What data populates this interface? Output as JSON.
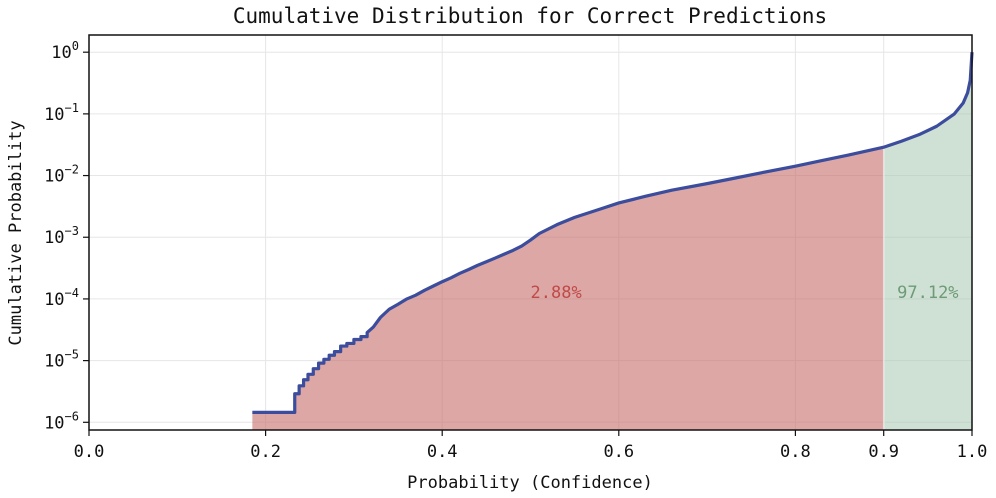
{
  "chart_data": {
    "type": "area",
    "title": "Cumulative Distribution for Correct Predictions",
    "xlabel": "Probability (Confidence)",
    "ylabel": "Cumulative Probability",
    "xlim": [
      0.0,
      1.0
    ],
    "ylim": [
      7.5e-07,
      1.9
    ],
    "y_scale": "log",
    "grid": true,
    "x_ticks": [
      {
        "value": 0.0,
        "label": "0.0"
      },
      {
        "value": 0.2,
        "label": "0.2"
      },
      {
        "value": 0.4,
        "label": "0.4"
      },
      {
        "value": 0.6,
        "label": "0.6"
      },
      {
        "value": 0.8,
        "label": "0.8"
      },
      {
        "value": 0.9,
        "label": "0.9"
      },
      {
        "value": 1.0,
        "label": "1.0"
      }
    ],
    "y_ticks": [
      {
        "value": 1.0,
        "base": "10",
        "exp": "0"
      },
      {
        "value": 0.1,
        "base": "10",
        "exp": "−1"
      },
      {
        "value": 0.01,
        "base": "10",
        "exp": "−2"
      },
      {
        "value": 0.001,
        "base": "10",
        "exp": "−3"
      },
      {
        "value": 0.0001,
        "base": "10",
        "exp": "−4"
      },
      {
        "value": 1e-05,
        "base": "10",
        "exp": "−5"
      },
      {
        "value": 1e-06,
        "base": "10",
        "exp": "−6"
      }
    ],
    "threshold": 0.9,
    "regions": [
      {
        "label": "2.88%",
        "x_range": [
          0.185,
          0.9
        ],
        "color": "#c76c6a",
        "opacity": 0.6,
        "label_x": 0.5,
        "label_y": 0.00013
      },
      {
        "label": "97.12%",
        "x_range": [
          0.9,
          1.0
        ],
        "color": "#a8c9b2",
        "opacity": 0.55,
        "label_x": 0.95,
        "label_y": 0.00013
      }
    ],
    "label_colors": [
      "#c04a47",
      "#6e9a77"
    ],
    "series": [
      {
        "color": "#3b4d9c",
        "x": [
          0.185,
          0.233,
          0.233,
          0.238,
          0.238,
          0.243,
          0.243,
          0.248,
          0.248,
          0.254,
          0.254,
          0.26,
          0.26,
          0.266,
          0.266,
          0.272,
          0.272,
          0.278,
          0.278,
          0.285,
          0.285,
          0.292,
          0.292,
          0.3,
          0.3,
          0.308,
          0.308,
          0.315,
          0.315,
          0.322,
          0.33,
          0.34,
          0.35,
          0.36,
          0.37,
          0.38,
          0.39,
          0.4,
          0.41,
          0.42,
          0.43,
          0.44,
          0.45,
          0.46,
          0.47,
          0.48,
          0.49,
          0.5,
          0.51,
          0.53,
          0.55,
          0.58,
          0.6,
          0.63,
          0.66,
          0.7,
          0.73,
          0.76,
          0.8,
          0.83,
          0.86,
          0.9,
          0.92,
          0.94,
          0.96,
          0.98,
          0.99,
          0.995,
          0.998,
          1.0
        ],
        "y": [
          1.45e-06,
          1.45e-06,
          2.9e-06,
          2.9e-06,
          3.9e-06,
          3.9e-06,
          4.9e-06,
          4.9e-06,
          6e-06,
          6e-06,
          7.4e-06,
          7.4e-06,
          9.1e-06,
          9.1e-06,
          1.05e-05,
          1.05e-05,
          1.22e-05,
          1.22e-05,
          1.4e-05,
          1.4e-05,
          1.72e-05,
          1.72e-05,
          1.9e-05,
          1.9e-05,
          2.2e-05,
          2.2e-05,
          2.45e-05,
          2.45e-05,
          2.85e-05,
          3.5e-05,
          5e-05,
          6.8e-05,
          8.2e-05,
          0.0001,
          0.000115,
          0.000138,
          0.000162,
          0.00019,
          0.00022,
          0.00026,
          0.0003,
          0.00035,
          0.0004,
          0.00046,
          0.00053,
          0.00061,
          0.00072,
          0.0009,
          0.00115,
          0.0016,
          0.0021,
          0.0029,
          0.0036,
          0.0046,
          0.0058,
          0.0074,
          0.009,
          0.011,
          0.0142,
          0.0175,
          0.0215,
          0.0288,
          0.036,
          0.046,
          0.063,
          0.1,
          0.15,
          0.22,
          0.35,
          1.0
        ]
      }
    ]
  }
}
